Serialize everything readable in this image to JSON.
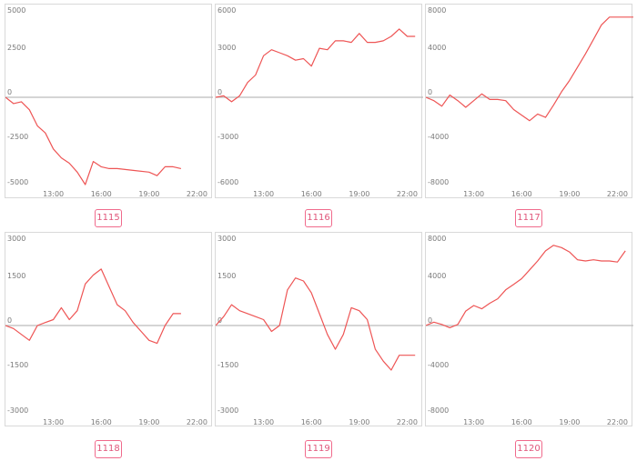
{
  "line_color": "#ee5555",
  "zero_line_color": "#bcbcbc",
  "badge_color": "#e0567a",
  "chart_data": [
    {
      "type": "line",
      "id": "1115",
      "x_ticks": [
        "13:00",
        "16:00",
        "19:00",
        "22:00"
      ],
      "y_ticks": [
        "5000",
        "2500",
        "0",
        "-2500",
        "-5000"
      ],
      "ylim": [
        -5000,
        5000
      ],
      "xlim": [
        10,
        23
      ],
      "series": [
        {
          "x": [
            10.0,
            10.5,
            11.0,
            11.5,
            12.0,
            12.5,
            13.0,
            13.5,
            14.0,
            14.5,
            15.0,
            15.5,
            16.0,
            16.5,
            17.0,
            18.0,
            19.0,
            19.5,
            20.0,
            20.5,
            21.0
          ],
          "y": [
            0,
            -350,
            -250,
            -700,
            -1600,
            -2000,
            -2900,
            -3400,
            -3700,
            -4200,
            -4900,
            -3600,
            -3900,
            -4000,
            -4000,
            -4100,
            -4200,
            -4400,
            -3900,
            -3900,
            -4000
          ]
        }
      ]
    },
    {
      "type": "line",
      "id": "1116",
      "x_ticks": [
        "13:00",
        "16:00",
        "19:00",
        "22:00"
      ],
      "y_ticks": [
        "6000",
        "3000",
        "0",
        "-3000",
        "-6000"
      ],
      "ylim": [
        -6000,
        6000
      ],
      "xlim": [
        10,
        23
      ],
      "series": [
        {
          "x": [
            10.0,
            10.5,
            11.0,
            11.5,
            12.0,
            12.5,
            13.0,
            13.5,
            14.0,
            14.5,
            15.0,
            15.5,
            16.0,
            16.5,
            17.0,
            17.5,
            18.0,
            18.5,
            19.0,
            19.5,
            20.0,
            20.5,
            21.0,
            21.5,
            22.0,
            22.5
          ],
          "y": [
            0,
            100,
            -300,
            100,
            1000,
            1500,
            2800,
            3200,
            3000,
            2800,
            2500,
            2600,
            2100,
            3300,
            3200,
            3800,
            3800,
            3700,
            4300,
            3700,
            3700,
            3800,
            4100,
            4600,
            4100,
            4100
          ]
        }
      ]
    },
    {
      "type": "line",
      "id": "1117",
      "x_ticks": [
        "13:00",
        "16:00",
        "19:00",
        "22:00"
      ],
      "y_ticks": [
        "8000",
        "4000",
        "0",
        "-4000",
        "-8000"
      ],
      "ylim": [
        -8000,
        8000
      ],
      "xlim": [
        10,
        23
      ],
      "series": [
        {
          "x": [
            10.0,
            10.5,
            11.0,
            11.5,
            12.0,
            12.5,
            13.0,
            13.5,
            14.0,
            14.5,
            15.0,
            15.5,
            16.0,
            16.5,
            17.0,
            17.5,
            18.0,
            18.5,
            19.0,
            19.5,
            20.0,
            20.5,
            21.0,
            21.5,
            22.0,
            22.5,
            23.0
          ],
          "y": [
            0,
            -300,
            -800,
            200,
            -300,
            -900,
            -300,
            300,
            -200,
            -200,
            -300,
            -1100,
            -1600,
            -2100,
            -1500,
            -1800,
            -700,
            500,
            1500,
            2700,
            3900,
            5200,
            6500,
            7200,
            7200,
            7200,
            7200
          ]
        }
      ]
    },
    {
      "type": "line",
      "id": "1118",
      "x_ticks": [
        "13:00",
        "16:00",
        "19:00",
        "22:00"
      ],
      "y_ticks": [
        "3000",
        "1500",
        "0",
        "-1500",
        "-3000"
      ],
      "ylim": [
        -3000,
        3000
      ],
      "xlim": [
        10,
        23
      ],
      "series": [
        {
          "x": [
            10.0,
            10.5,
            11.0,
            11.5,
            12.0,
            12.5,
            13.0,
            13.5,
            14.0,
            14.5,
            15.0,
            15.5,
            16.0,
            16.5,
            17.0,
            17.5,
            18.0,
            18.5,
            19.0,
            19.5,
            20.0,
            20.5,
            21.0
          ],
          "y": [
            0,
            -100,
            -300,
            -500,
            0,
            100,
            200,
            600,
            200,
            500,
            1400,
            1700,
            1900,
            1300,
            700,
            500,
            100,
            -200,
            -500,
            -600,
            0,
            400,
            400
          ]
        }
      ]
    },
    {
      "type": "line",
      "id": "1119",
      "x_ticks": [
        "13:00",
        "16:00",
        "19:00",
        "22:00"
      ],
      "y_ticks": [
        "3000",
        "1500",
        "0",
        "-1500",
        "-3000"
      ],
      "ylim": [
        -3000,
        3000
      ],
      "xlim": [
        10,
        23
      ],
      "series": [
        {
          "x": [
            10.0,
            10.5,
            11.0,
            11.5,
            12.0,
            12.5,
            13.0,
            13.5,
            14.0,
            14.5,
            15.0,
            15.5,
            16.0,
            16.5,
            17.0,
            17.5,
            18.0,
            18.5,
            19.0,
            19.5,
            20.0,
            20.5,
            21.0,
            21.5,
            22.0,
            22.5
          ],
          "y": [
            0,
            300,
            700,
            500,
            400,
            300,
            200,
            -200,
            0,
            1200,
            1600,
            1500,
            1100,
            400,
            -300,
            -800,
            -300,
            600,
            500,
            200,
            -800,
            -1200,
            -1500,
            -1000,
            -1000,
            -1000
          ]
        }
      ]
    },
    {
      "type": "line",
      "id": "1120",
      "x_ticks": [
        "13:00",
        "16:00",
        "19:00",
        "22:00"
      ],
      "y_ticks": [
        "8000",
        "4000",
        "0",
        "-4000",
        "-8000"
      ],
      "ylim": [
        -8000,
        8000
      ],
      "xlim": [
        10,
        23
      ],
      "series": [
        {
          "x": [
            10.0,
            10.5,
            11.0,
            11.5,
            12.0,
            12.5,
            13.0,
            13.5,
            14.0,
            14.5,
            15.0,
            15.5,
            16.0,
            16.5,
            17.0,
            17.5,
            18.0,
            18.5,
            19.0,
            19.5,
            20.0,
            20.5,
            21.0,
            21.5,
            22.0,
            22.5
          ],
          "y": [
            0,
            300,
            100,
            -200,
            100,
            1300,
            1800,
            1500,
            2000,
            2400,
            3200,
            3700,
            4200,
            5000,
            5800,
            6700,
            7200,
            7000,
            6600,
            5900,
            5800,
            5900,
            5800,
            5800,
            5700,
            6700
          ]
        }
      ]
    }
  ]
}
